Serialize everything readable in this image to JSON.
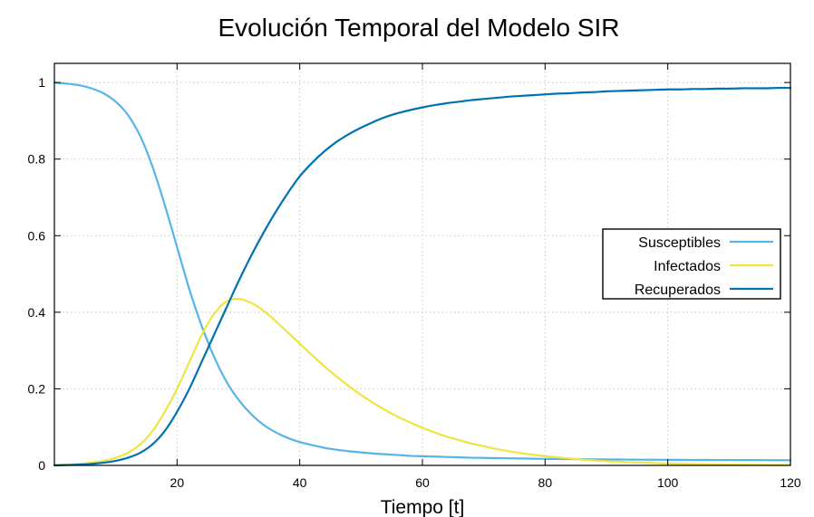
{
  "chart_data": {
    "type": "line",
    "title": "Evolución Temporal del Modelo SIR",
    "xlabel": "Tiempo [t]",
    "ylabel": "",
    "xlim": [
      0,
      120
    ],
    "ylim": [
      0,
      1.05
    ],
    "xticks": [
      20,
      40,
      60,
      80,
      100,
      120
    ],
    "xtick_labels": [
      "20",
      "40",
      "60",
      "80",
      "100",
      "120"
    ],
    "yticks": [
      0,
      0.2,
      0.4,
      0.6,
      0.8,
      1
    ],
    "ytick_labels": [
      "0",
      "0.2",
      "0.4",
      "0.6",
      "0.8",
      "1"
    ],
    "grid": true,
    "legend_position": "right",
    "x": [
      0,
      2,
      4,
      6,
      8,
      10,
      12,
      14,
      16,
      18,
      20,
      22,
      24,
      26,
      28,
      30,
      32,
      34,
      36,
      38,
      40,
      42,
      44,
      46,
      48,
      50,
      52,
      54,
      56,
      58,
      60,
      62,
      64,
      66,
      68,
      70,
      72,
      74,
      76,
      78,
      80,
      82,
      84,
      86,
      88,
      90,
      92,
      94,
      96,
      98,
      100,
      102,
      104,
      106,
      108,
      110,
      112,
      114,
      116,
      118,
      120
    ],
    "series": [
      {
        "name": "Susceptibles",
        "color": "#56b4e9",
        "values": [
          1.0,
          0.997,
          0.993,
          0.985,
          0.972,
          0.95,
          0.915,
          0.86,
          0.78,
          0.68,
          0.57,
          0.46,
          0.365,
          0.285,
          0.22,
          0.172,
          0.135,
          0.107,
          0.087,
          0.072,
          0.061,
          0.053,
          0.046,
          0.041,
          0.037,
          0.034,
          0.031,
          0.029,
          0.027,
          0.025,
          0.024,
          0.023,
          0.022,
          0.021,
          0.02,
          0.0195,
          0.019,
          0.0185,
          0.018,
          0.0175,
          0.017,
          0.0167,
          0.0164,
          0.0161,
          0.0158,
          0.0155,
          0.0153,
          0.0151,
          0.0149,
          0.0147,
          0.0145,
          0.0144,
          0.0143,
          0.0142,
          0.0141,
          0.014,
          0.0139,
          0.0138,
          0.0137,
          0.0136,
          0.0135
        ]
      },
      {
        "name": "Infectados",
        "color": "#f0e442",
        "values": [
          0.001,
          0.002,
          0.004,
          0.007,
          0.012,
          0.02,
          0.033,
          0.055,
          0.09,
          0.14,
          0.2,
          0.27,
          0.34,
          0.395,
          0.428,
          0.435,
          0.425,
          0.405,
          0.378,
          0.348,
          0.318,
          0.288,
          0.259,
          0.232,
          0.207,
          0.184,
          0.163,
          0.144,
          0.127,
          0.112,
          0.098,
          0.086,
          0.075,
          0.066,
          0.057,
          0.05,
          0.043,
          0.037,
          0.032,
          0.028,
          0.024,
          0.021,
          0.018,
          0.015,
          0.013,
          0.011,
          0.0095,
          0.008,
          0.007,
          0.006,
          0.005,
          0.0042,
          0.0036,
          0.003,
          0.0026,
          0.0022,
          0.0019,
          0.0016,
          0.0013,
          0.0011,
          0.001
        ]
      },
      {
        "name": "Recuperados",
        "color": "#0072b2",
        "values": [
          0.0,
          0.001,
          0.002,
          0.004,
          0.007,
          0.012,
          0.02,
          0.033,
          0.055,
          0.09,
          0.14,
          0.2,
          0.27,
          0.34,
          0.41,
          0.48,
          0.545,
          0.605,
          0.66,
          0.71,
          0.755,
          0.79,
          0.82,
          0.845,
          0.865,
          0.882,
          0.897,
          0.91,
          0.92,
          0.928,
          0.935,
          0.941,
          0.946,
          0.95,
          0.954,
          0.957,
          0.96,
          0.963,
          0.965,
          0.967,
          0.969,
          0.971,
          0.972,
          0.974,
          0.975,
          0.977,
          0.978,
          0.979,
          0.98,
          0.981,
          0.982,
          0.982,
          0.983,
          0.983,
          0.984,
          0.984,
          0.985,
          0.985,
          0.985,
          0.986,
          0.986
        ]
      }
    ]
  }
}
